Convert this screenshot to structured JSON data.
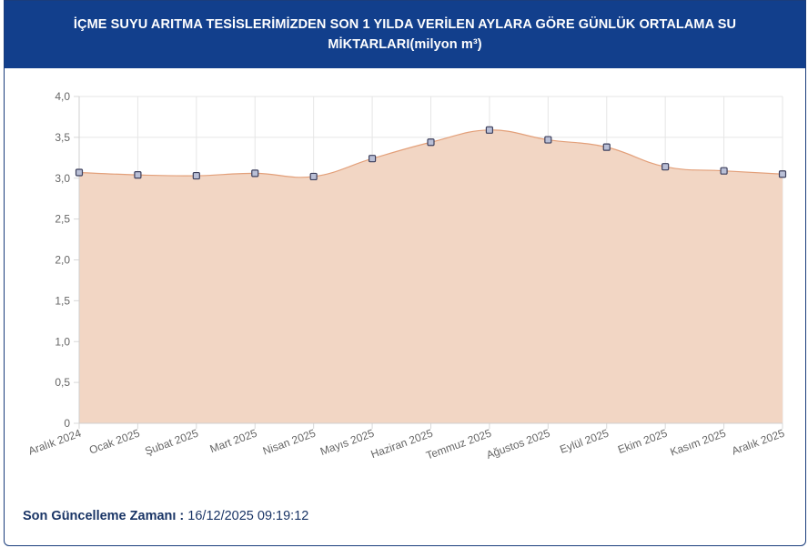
{
  "header": {
    "title": "İÇME SUYU ARITMA TESİSLERİMİZDEN SON 1 YILDA VERİLEN AYLARA GÖRE GÜNLÜK ORTALAMA SU MİKTARLARI(milyon m³)"
  },
  "footer": {
    "label": "Son Güncelleme Zamanı :",
    "value": "16/12/2025 09:19:12"
  },
  "colors": {
    "header_bg": "#123f8c",
    "area_fill": "#f2d6c4",
    "line": "#e3a07a",
    "marker_fill": "#b9bfd6",
    "marker_stroke": "#3c3f5c"
  },
  "chart_data": {
    "type": "area",
    "title": "",
    "xlabel": "",
    "ylabel": "",
    "categories": [
      "Aralık 2024",
      "Ocak 2025",
      "Şubat 2025",
      "Mart 2025",
      "Nisan 2025",
      "Mayıs 2025",
      "Haziran 2025",
      "Temmuz 2025",
      "Ağustos 2025",
      "Eylül 2025",
      "Ekim 2025",
      "Kasım 2025",
      "Aralık 2025"
    ],
    "values": [
      3.07,
      3.04,
      3.03,
      3.06,
      3.02,
      3.24,
      3.44,
      3.59,
      3.47,
      3.38,
      3.14,
      3.09,
      3.05
    ],
    "ylim": [
      0,
      4
    ],
    "yticks": [
      0,
      0.5,
      1.0,
      1.5,
      2.0,
      2.5,
      3.0,
      3.5,
      4.0
    ],
    "ytick_labels": [
      "0",
      "0,5",
      "1,0",
      "1,5",
      "2,0",
      "2,5",
      "3,0",
      "3,5",
      "4,0"
    ],
    "grid": true,
    "legend": "none"
  }
}
